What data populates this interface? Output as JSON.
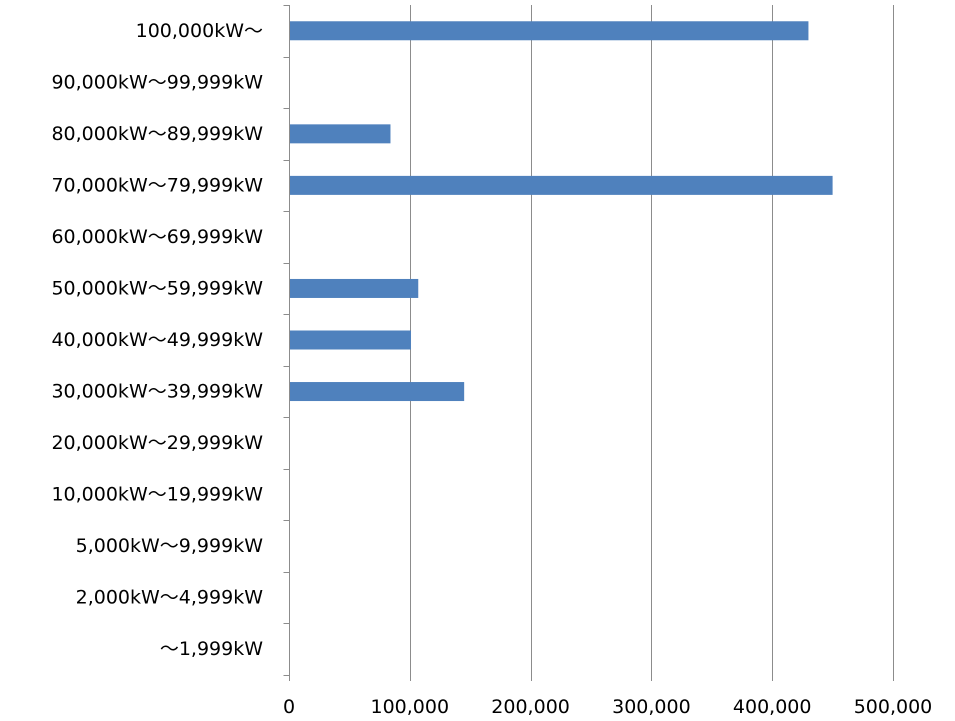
{
  "chart_data": {
    "type": "bar",
    "orientation": "horizontal",
    "title": "",
    "xlabel": "",
    "ylabel": "",
    "categories": [
      "100,000kW～",
      "90,000kW～99,999kW",
      "80,000kW～89,999kW",
      "70,000kW～79,999kW",
      "60,000kW～69,999kW",
      "50,000kW～59,999kW",
      "40,000kW～49,999kW",
      "30,000kW～39,999kW",
      "20,000kW～29,999kW",
      "10,000kW～19,999kW",
      "5,000kW～9,999kW",
      "2,000kW～4,999kW",
      "～1,999kW"
    ],
    "values": [
      430000,
      0,
      84000,
      450000,
      0,
      107000,
      101000,
      145000,
      0,
      0,
      0,
      0,
      0
    ],
    "xlim": [
      0,
      500000
    ],
    "x_ticks": [
      0,
      100000,
      200000,
      300000,
      400000,
      500000
    ],
    "x_tick_labels": [
      "0",
      "100,000",
      "200,000",
      "300,000",
      "400,000",
      "500,000"
    ],
    "grid": "vertical",
    "legend": "none",
    "bar_color": "#4f81bd"
  }
}
